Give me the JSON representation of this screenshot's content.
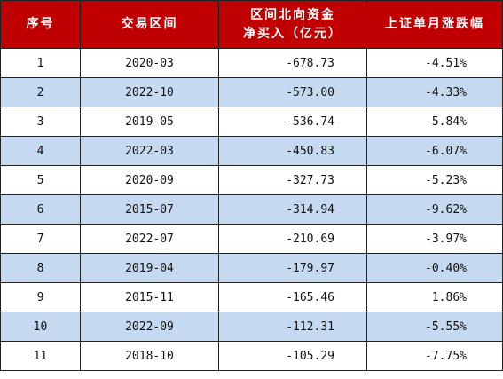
{
  "header": {
    "col_index": "序号",
    "col_period": "交易区间",
    "col_flow_line1": "区间北向资金",
    "col_flow_line2": "净买入（亿元）",
    "col_change": "上证单月涨跌幅"
  },
  "rows": [
    {
      "index": "1",
      "period": "2020-03",
      "flow": "-678.73",
      "change": "-4.51%"
    },
    {
      "index": "2",
      "period": "2022-10",
      "flow": "-573.00",
      "change": "-4.33%"
    },
    {
      "index": "3",
      "period": "2019-05",
      "flow": "-536.74",
      "change": "-5.84%"
    },
    {
      "index": "4",
      "period": "2022-03",
      "flow": "-450.83",
      "change": "-6.07%"
    },
    {
      "index": "5",
      "period": "2020-09",
      "flow": "-327.73",
      "change": "-5.23%"
    },
    {
      "index": "6",
      "period": "2015-07",
      "flow": "-314.94",
      "change": "-9.62%"
    },
    {
      "index": "7",
      "period": "2022-07",
      "flow": "-210.69",
      "change": "-3.97%"
    },
    {
      "index": "8",
      "period": "2019-04",
      "flow": "-179.97",
      "change": "-0.40%"
    },
    {
      "index": "9",
      "period": "2015-11",
      "flow": "-165.46",
      "change": "1.86%"
    },
    {
      "index": "10",
      "period": "2022-09",
      "flow": "-112.31",
      "change": "-5.55%"
    },
    {
      "index": "11",
      "period": "2018-10",
      "flow": "-105.29",
      "change": "-7.75%"
    }
  ]
}
